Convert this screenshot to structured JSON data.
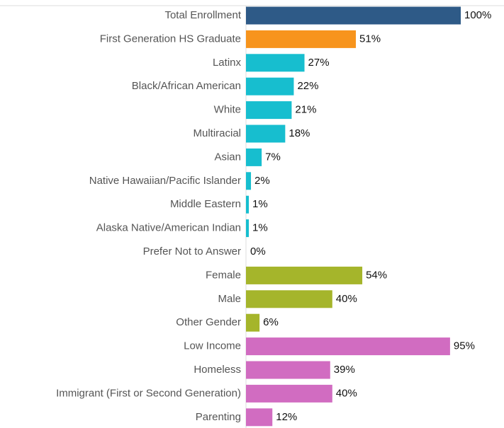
{
  "chart_data": {
    "type": "bar",
    "orientation": "horizontal",
    "categories": [
      "Total Enrollment",
      "First Generation HS Graduate",
      "Latinx",
      "Black/African American",
      "White",
      "Multiracial",
      "Asian",
      "Native Hawaiian/Pacific Islander",
      "Middle Eastern",
      "Alaska Native/American Indian",
      "Prefer Not to Answer",
      "Female",
      "Male",
      "Other Gender",
      "Low Income",
      "Homeless",
      "Immigrant (First or Second Generation)",
      "Parenting"
    ],
    "values": [
      100,
      51,
      27,
      22,
      21,
      18,
      7,
      2,
      1,
      1,
      0,
      54,
      40,
      6,
      95,
      39,
      40,
      12
    ],
    "value_labels": [
      "100%",
      "51%",
      "27%",
      "22%",
      "21%",
      "18%",
      "7%",
      "2%",
      "1%",
      "1%",
      "0%",
      "54%",
      "40%",
      "6%",
      "95%",
      "39%",
      "40%",
      "12%"
    ],
    "colors": [
      "#2e5a87",
      "#f7941d",
      "#17becf",
      "#17becf",
      "#17becf",
      "#17becf",
      "#17becf",
      "#17becf",
      "#17becf",
      "#17becf",
      "#17becf",
      "#a5b52b",
      "#a5b52b",
      "#a5b52b",
      "#d16cc1",
      "#d16cc1",
      "#d16cc1",
      "#d16cc1"
    ],
    "xlim": [
      0,
      100
    ]
  }
}
